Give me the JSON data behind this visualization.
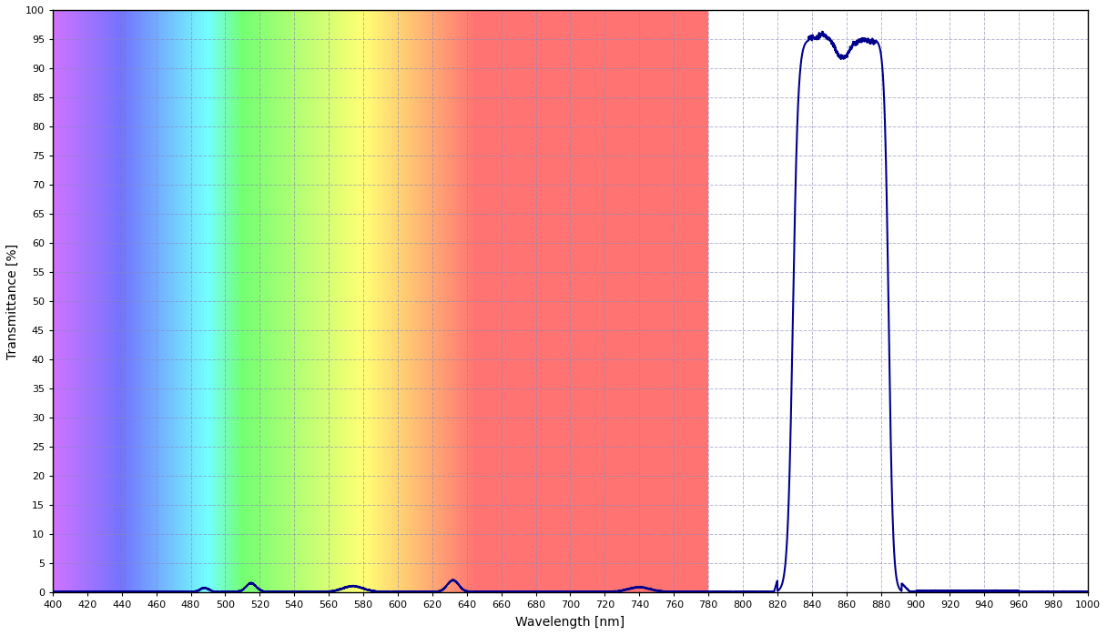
{
  "xlabel": "Wavelength [nm]",
  "ylabel": "Transmittance [%]",
  "xmin": 400,
  "xmax": 1000,
  "ymin": 0,
  "ymax": 100,
  "xtick_step": 20,
  "ytick_step": 5,
  "line_color": "#00008B",
  "line_width": 1.5,
  "visible_range_end": 780,
  "background_color": "#ffffff",
  "grid_color": "#8888bb",
  "grid_style": "--",
  "grid_alpha": 0.6
}
